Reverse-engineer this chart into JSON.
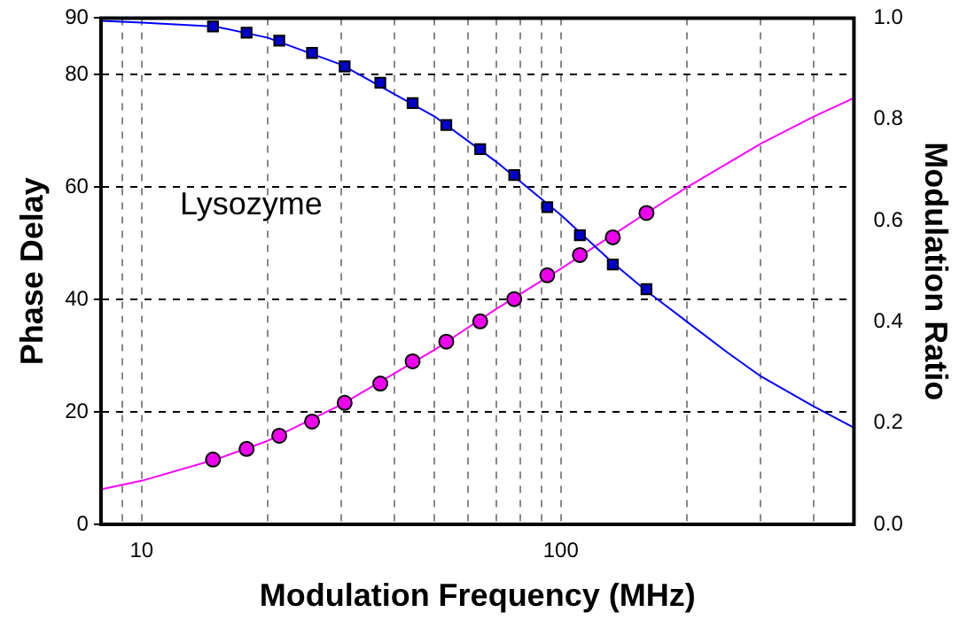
{
  "chart_data": {
    "type": "scatter",
    "xlabel": "Modulation Frequency (MHz)",
    "ylabel": "Phase Delay",
    "y2label": "Modulation Ratio",
    "annotations": [
      "Lysozyme"
    ],
    "log": "x",
    "grid": true,
    "legend": false,
    "xlim": [
      8,
      500
    ],
    "xticks": [
      {
        "value": 9,
        "label": null
      },
      {
        "value": 10,
        "label": "10"
      },
      {
        "value": 20,
        "label": null
      },
      {
        "value": 30,
        "label": null
      },
      {
        "value": 40,
        "label": null
      },
      {
        "value": 50,
        "label": null
      },
      {
        "value": 60,
        "label": null
      },
      {
        "value": 70,
        "label": null
      },
      {
        "value": 80,
        "label": null
      },
      {
        "value": 90,
        "label": null
      },
      {
        "value": 100,
        "label": "100"
      },
      {
        "value": 200,
        "label": null
      },
      {
        "value": 300,
        "label": null
      },
      {
        "value": 400,
        "label": null
      }
    ],
    "ylim": [
      0,
      90
    ],
    "yticks": [
      0,
      20,
      40,
      60,
      80,
      90
    ],
    "y2lim": [
      0,
      1
    ],
    "y2ticks": [
      {
        "value": 0,
        "label": "0.0"
      },
      {
        "value": 0.2,
        "label": "0.2"
      },
      {
        "value": 0.4,
        "label": "0.4"
      },
      {
        "value": 0.6,
        "label": "0.6"
      },
      {
        "value": 0.8,
        "label": "0.8"
      },
      {
        "value": 1,
        "label": "1.0"
      }
    ],
    "series": [
      {
        "type": "line",
        "color": "#0000ff",
        "marker": "none",
        "x": [
          8,
          10,
          15,
          20,
          30,
          50,
          70,
          100,
          133,
          160,
          200,
          250,
          300,
          400,
          500
        ],
        "values": [
          89.5,
          89.2,
          88.5,
          86.5,
          81.7,
          72.5,
          64.5,
          55,
          46.5,
          41.5,
          36,
          30.5,
          26.3,
          21,
          17.2
        ]
      },
      {
        "type": "line",
        "color": "#ff00ff",
        "marker": "none",
        "axis": "y2",
        "x": [
          8,
          10,
          15,
          20,
          30,
          50,
          70,
          100,
          160,
          200,
          300,
          400,
          500
        ],
        "values": [
          0.069,
          0.086,
          0.128,
          0.165,
          0.237,
          0.345,
          0.425,
          0.505,
          0.615,
          0.666,
          0.752,
          0.805,
          0.842
        ]
      },
      {
        "color": "#0000cc",
        "marker": "square",
        "x": [
          14.8,
          17.8,
          21.3,
          25.5,
          30.5,
          37.1,
          44.3,
          53.3,
          64.2,
          77.4,
          92.8,
          111,
          133,
          160
        ],
        "values": [
          88.5,
          87.4,
          86,
          83.8,
          81.4,
          78.5,
          74.9,
          71,
          66.7,
          62.1,
          56.4,
          51.4,
          46.2,
          41.8
        ]
      },
      {
        "color": "#ee00ee",
        "marker": "circle",
        "axis": "y2",
        "x": [
          14.8,
          17.8,
          21.3,
          25.5,
          30.5,
          37.1,
          44.3,
          53.3,
          64.2,
          77.4,
          92.8,
          111,
          133,
          160
        ],
        "values": [
          0.128,
          0.149,
          0.175,
          0.203,
          0.24,
          0.278,
          0.322,
          0.361,
          0.401,
          0.445,
          0.492,
          0.532,
          0.567,
          0.615
        ]
      }
    ]
  }
}
